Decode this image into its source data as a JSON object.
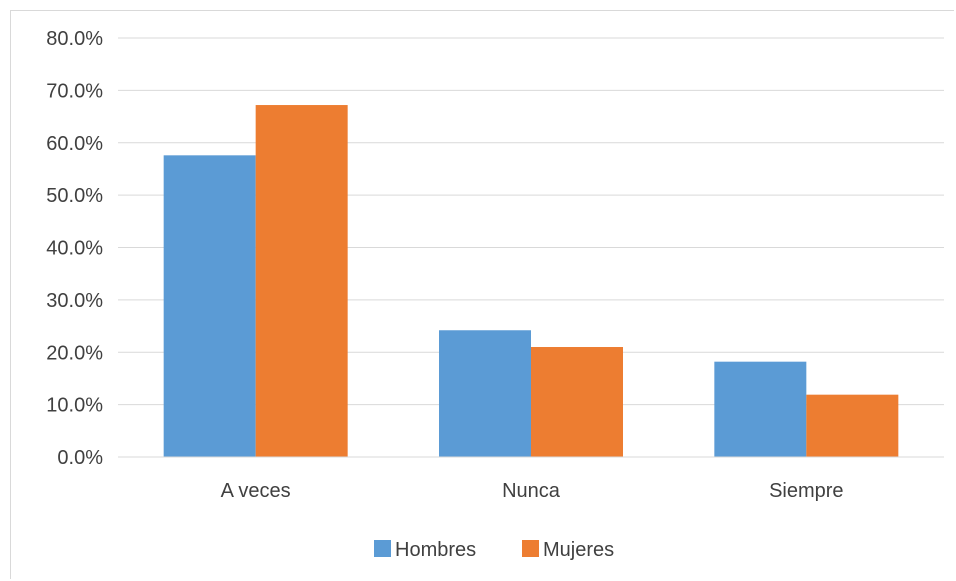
{
  "chart_data": {
    "type": "bar",
    "categories": [
      "A veces",
      "Nunca",
      "Siempre"
    ],
    "series": [
      {
        "name": "Hombres",
        "values": [
          57.6,
          24.2,
          18.2
        ],
        "color": "#5B9BD5"
      },
      {
        "name": "Mujeres",
        "values": [
          67.2,
          21.0,
          11.9
        ],
        "color": "#ED7D31"
      }
    ],
    "y_ticks": [
      "0.0%",
      "10.0%",
      "20.0%",
      "30.0%",
      "40.0%",
      "50.0%",
      "60.0%",
      "70.0%",
      "80.0%"
    ],
    "ylim": [
      0,
      80
    ],
    "y_unit": "%",
    "grid": true,
    "legend_position": "bottom"
  }
}
